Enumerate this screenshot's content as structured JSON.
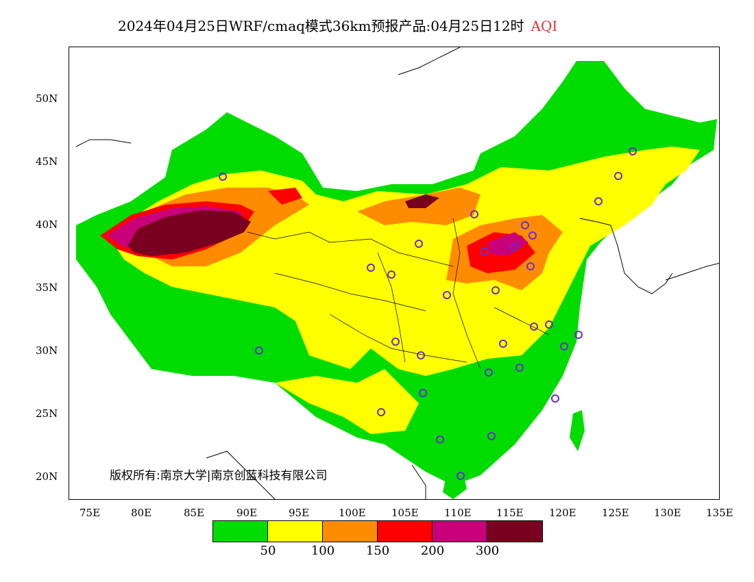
{
  "title": {
    "text": "2024年04月25日WRF/cmaq模式36km预报产品:04月25日12时",
    "variable": "AQI"
  },
  "axes": {
    "lat_labels": [
      "50N",
      "45N",
      "40N",
      "35N",
      "30N",
      "25N",
      "20N"
    ],
    "lon_labels": [
      "75E",
      "80E",
      "85E",
      "90E",
      "95E",
      "100E",
      "105E",
      "110E",
      "115E",
      "120E",
      "125E",
      "130E",
      "135E"
    ]
  },
  "copyright": "版权所有:南京大学|南京创蓝科技有限公司",
  "legend": {
    "colors": [
      "#00dc00",
      "#ffff00",
      "#ff8c00",
      "#ff0000",
      "#c8007a",
      "#7a0020"
    ],
    "labels": [
      "50",
      "100",
      "150",
      "200",
      "300"
    ]
  },
  "colors": {
    "ocean": "#ffffff",
    "border": "#000000",
    "station_marker": "#6a2ccf"
  }
}
